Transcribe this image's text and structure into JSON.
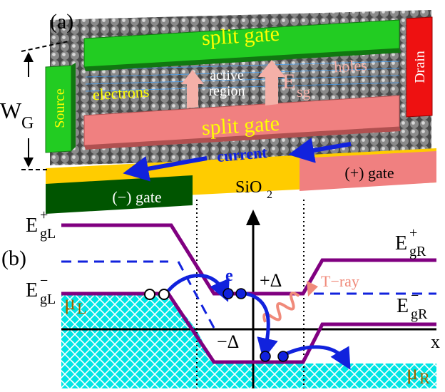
{
  "panel_a": {
    "label": "(a)",
    "split_gate_top": "split gate",
    "split_gate_bottom": "split gate",
    "source": "Source",
    "drain": "Drain",
    "electrons": "electrons",
    "active_region_line1": "active",
    "active_region_line2": "region",
    "holes": "holes",
    "field_main": "E",
    "field_sub": "sg",
    "current": "current",
    "oxide_main": "SiO",
    "oxide_sub": "2",
    "neg_gate": "(−) gate",
    "pos_gate": "(+) gate",
    "width_main": "W",
    "width_sub": "G"
  },
  "panel_b": {
    "label": "(b)",
    "egl_plus": {
      "main": "E",
      "sup": "+",
      "sub": "gL"
    },
    "egl_minus": {
      "main": "E",
      "sup": "−",
      "sub": "gL"
    },
    "egr_plus": {
      "main": "E",
      "sup": "+",
      "sub": "gR"
    },
    "egr_minus": {
      "main": "E",
      "sup": "−",
      "sub": "gR"
    },
    "mu_l": {
      "main": "μ",
      "sub": "L"
    },
    "mu_r": {
      "main": "μ",
      "sub": "R"
    },
    "electron": "e",
    "plus_delta": "+Δ",
    "minus_delta": "−Δ",
    "t_ray": "T−ray",
    "x_axis": "x"
  },
  "colors": {
    "gate_green": "#22cc22",
    "gate_pink": "#f08080",
    "source_green": "#22cc22",
    "drain_red": "#ee1111",
    "oxide_gold": "#ffcc00",
    "neg_gate_dark_green": "#005500",
    "arrow_blue": "#1122dd",
    "band_purple": "#800080",
    "fill_cyan": "#00e5e5",
    "field_arrow_pink": "#f4b0a8",
    "t_ray_salmon": "#f08a7a"
  }
}
